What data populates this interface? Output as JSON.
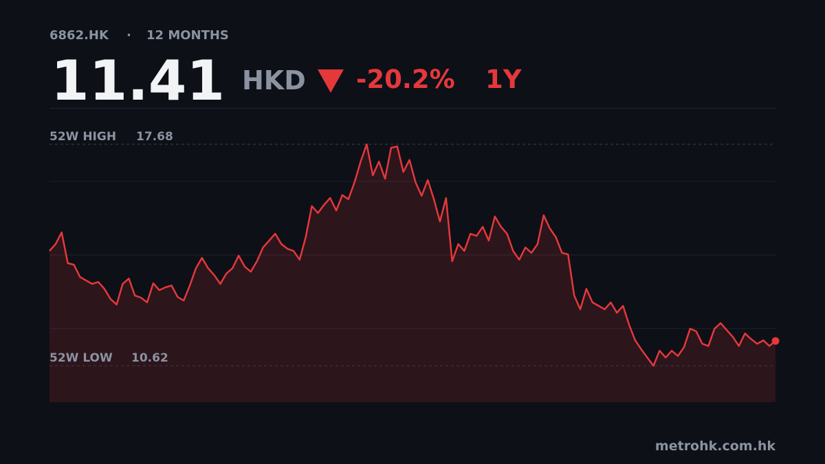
{
  "chart_data": {
    "type": "area",
    "symbol": "6862.HK",
    "separator": "·",
    "period": "12 MONTHS",
    "price": "11.41",
    "currency": "HKD",
    "change": "-20.2%",
    "range_label": "1Y",
    "high_label": "52W HIGH",
    "high": 17.68,
    "low_label": "52W LOW",
    "low": 10.62,
    "source": "metrohk.com.hk",
    "color": "#e5383b",
    "ylim": [
      9.46,
      18.84
    ],
    "yticks": [
      11.81,
      14.15,
      16.5
    ],
    "grid": true,
    "values": [
      14.28,
      14.5,
      14.87,
      13.89,
      13.84,
      13.45,
      13.34,
      13.23,
      13.29,
      13.07,
      12.75,
      12.57,
      13.23,
      13.4,
      12.86,
      12.79,
      12.64,
      13.25,
      13.03,
      13.12,
      13.18,
      12.81,
      12.7,
      13.18,
      13.73,
      14.06,
      13.73,
      13.51,
      13.23,
      13.56,
      13.73,
      14.13,
      13.78,
      13.62,
      13.95,
      14.39,
      14.61,
      14.83,
      14.5,
      14.35,
      14.28,
      14.0,
      14.72,
      15.71,
      15.49,
      15.75,
      15.97,
      15.57,
      16.06,
      15.93,
      16.47,
      17.13,
      17.68,
      16.69,
      17.13,
      16.58,
      17.57,
      17.61,
      16.8,
      17.18,
      16.47,
      16.04,
      16.54,
      15.93,
      15.22,
      15.97,
      13.95,
      14.5,
      14.28,
      14.83,
      14.76,
      15.05,
      14.61,
      15.38,
      15.05,
      14.83,
      14.28,
      14.0,
      14.39,
      14.22,
      14.5,
      15.42,
      15.0,
      14.72,
      14.22,
      14.17,
      12.86,
      12.42,
      13.07,
      12.64,
      12.53,
      12.42,
      12.64,
      12.31,
      12.53,
      11.93,
      11.43,
      11.14,
      10.88,
      10.62,
      11.1,
      10.88,
      11.1,
      10.93,
      11.21,
      11.8,
      11.72,
      11.32,
      11.25,
      11.8,
      11.98,
      11.76,
      11.54,
      11.25,
      11.65,
      11.47,
      11.32,
      11.43,
      11.25,
      11.41
    ]
  }
}
